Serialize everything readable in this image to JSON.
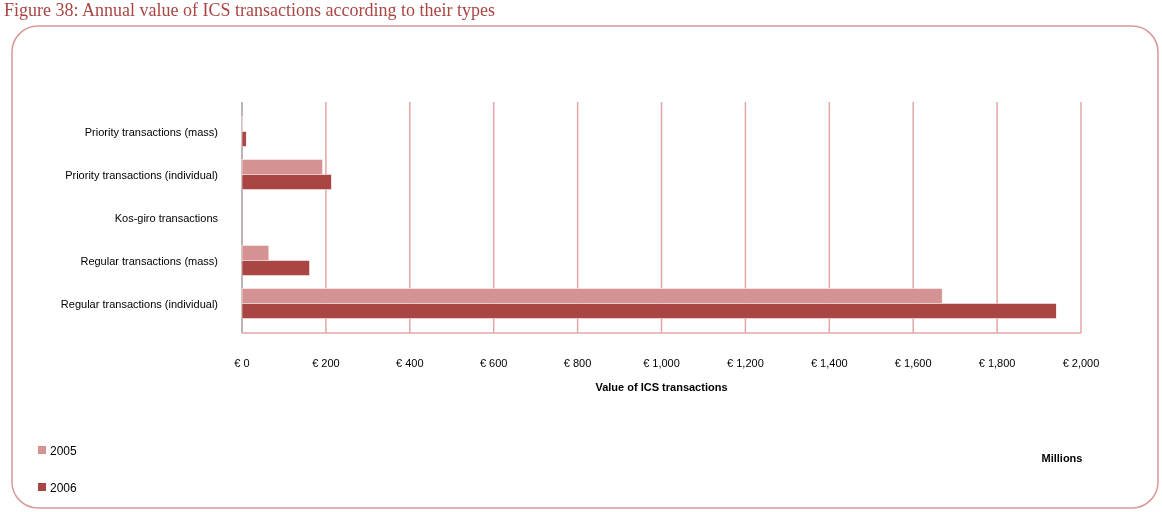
{
  "chart_data": {
    "type": "bar",
    "orientation": "horizontal",
    "title": "Figure 38: Annual value of ICS transactions according to their types",
    "xlabel": "Value of ICS transactions",
    "annotations": [
      "Millions"
    ],
    "categories": [
      "Priority transactions  (mass)",
      "Priority transactions  (individual)",
      "Kos-giro transactions",
      "Regular transactions  (mass)",
      "Regular transactions  (individual)"
    ],
    "series": [
      {
        "name": "2005",
        "color": "#d49392",
        "values": [
          2,
          192,
          null,
          64,
          1669
        ]
      },
      {
        "name": "2006",
        "color": "#a94543",
        "values": [
          10,
          213,
          null,
          161,
          1941
        ]
      }
    ],
    "xlim": [
      0,
      2000
    ],
    "xticks": [
      {
        "value": 0,
        "label": "€ 0"
      },
      {
        "value": 200,
        "label": "€ 200"
      },
      {
        "value": 400,
        "label": "€ 400"
      },
      {
        "value": 600,
        "label": "€ 600"
      },
      {
        "value": 800,
        "label": "€ 800"
      },
      {
        "value": 1000,
        "label": "€ 1,000"
      },
      {
        "value": 1200,
        "label": "€ 1,200"
      },
      {
        "value": 1400,
        "label": "€ 1,400"
      },
      {
        "value": 1600,
        "label": "€ 1,600"
      },
      {
        "value": 1800,
        "label": "€ 1,800"
      },
      {
        "value": 2000,
        "label": "€ 2,000"
      }
    ],
    "grid": "x",
    "legend": "bottom left"
  }
}
